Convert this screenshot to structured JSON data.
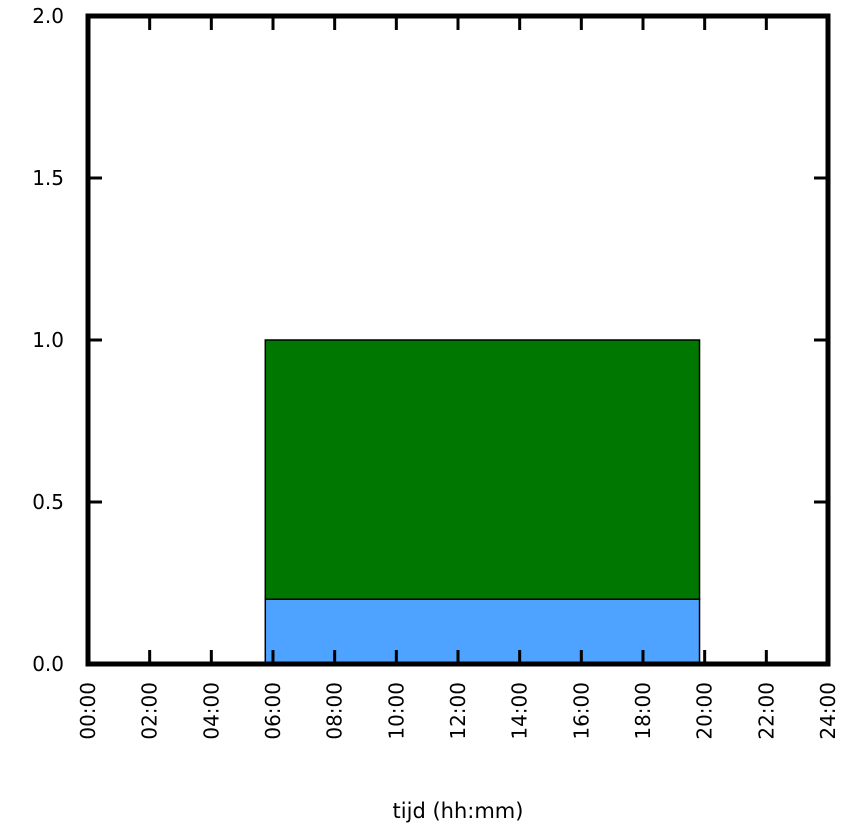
{
  "chart_data": {
    "type": "area",
    "title": "",
    "xlabel": "tijd (hh:mm)",
    "ylabel": "",
    "xlim": [
      "00:00",
      "24:00"
    ],
    "ylim": [
      0.0,
      2.0
    ],
    "x_ticks": [
      "00:00",
      "02:00",
      "04:00",
      "06:00",
      "08:00",
      "10:00",
      "12:00",
      "14:00",
      "16:00",
      "18:00",
      "20:00",
      "22:00",
      "24:00"
    ],
    "y_ticks": [
      "0.0",
      "0.5",
      "1.0",
      "1.5",
      "2.0"
    ],
    "grid": false,
    "legend": "none",
    "stacked": true,
    "series": [
      {
        "color": "#4da3ff",
        "start": "05:45",
        "end": "19:50",
        "value": 0.2
      },
      {
        "color": "#007700",
        "start": "05:45",
        "end": "19:50",
        "value": 0.8
      }
    ]
  }
}
